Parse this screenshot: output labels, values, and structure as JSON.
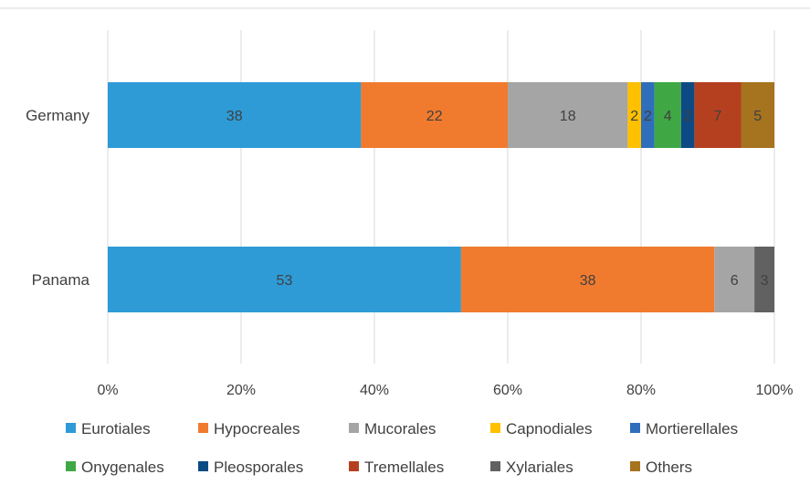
{
  "chart_data": {
    "type": "bar",
    "orientation": "horizontal",
    "stacked": "percent",
    "categories": [
      "Germany",
      "Panama"
    ],
    "series": [
      {
        "name": "Eurotiales",
        "color": "#2E9BD6",
        "values": [
          38,
          53
        ]
      },
      {
        "name": "Hypocreales",
        "color": "#F07B2E",
        "values": [
          22,
          38
        ]
      },
      {
        "name": "Mucorales",
        "color": "#A5A5A5",
        "values": [
          18,
          6
        ]
      },
      {
        "name": "Capnodiales",
        "color": "#FFC000",
        "values": [
          2,
          0
        ]
      },
      {
        "name": "Mortierellales",
        "color": "#2F6EBA",
        "values": [
          2,
          0
        ]
      },
      {
        "name": "Onygenales",
        "color": "#3FA845",
        "values": [
          4,
          0
        ]
      },
      {
        "name": "Pleosporales",
        "color": "#0D4A84",
        "values": [
          2,
          0
        ]
      },
      {
        "name": "Tremellales",
        "color": "#B5401F",
        "values": [
          7,
          0
        ]
      },
      {
        "name": "Xylariales",
        "color": "#616161",
        "values": [
          0,
          3
        ]
      },
      {
        "name": "Others",
        "color": "#A6731F",
        "values": [
          5,
          0
        ]
      }
    ],
    "xlim": [
      0,
      100
    ],
    "xticks": [
      "0%",
      "20%",
      "40%",
      "60%",
      "80%",
      "100%"
    ],
    "grid": true,
    "legend_position": "bottom"
  }
}
